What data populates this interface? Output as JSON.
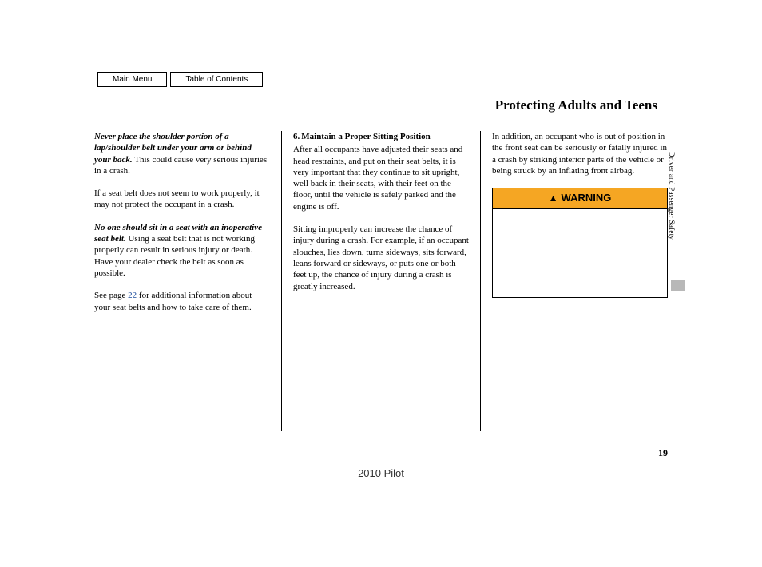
{
  "nav": {
    "main_menu": "Main Menu",
    "toc": "Table of Contents"
  },
  "title": "Protecting Adults and Teens",
  "side_label": "Driver and Passenger Safety",
  "page_number": "19",
  "footer_model": "2010 Pilot",
  "col1": {
    "p1_bold": "Never place the shoulder portion of a lap/shoulder belt under your arm or behind your back.",
    "p1_rest": " This could cause very serious injuries in a crash.",
    "p2": "If a seat belt does not seem to work properly, it may not protect the occupant in a crash.",
    "p3_bold": "No one should sit in a seat with an inoperative seat belt.",
    "p3_rest": " Using a seat belt that is not working properly can result in serious injury or death. Have your dealer check the belt as soon as possible.",
    "p4_a": "See page ",
    "p4_link": "22",
    "p4_b": " for additional information about your seat belts and how to take care of them."
  },
  "col2": {
    "step_num": "6.",
    "step_title": "Maintain a Proper Sitting Position",
    "p1": "After all occupants have adjusted their seats and head restraints, and put on their seat belts, it is very important that they continue to sit upright, well back in their seats, with their feet on the floor, until the vehicle is safely parked and the engine is off.",
    "p2": "Sitting improperly can increase the chance of injury during a crash. For example, if an occupant slouches, lies down, turns sideways, sits forward, leans forward or sideways, or puts one or both feet up, the chance of injury during a crash is greatly increased."
  },
  "col3": {
    "p1": "In addition, an occupant who is out of position in the front seat can be seriously or fatally injured in a crash by striking interior parts of the vehicle or being struck by an inflating front airbag.",
    "warning_label": "WARNING"
  },
  "colors": {
    "warning_bg": "#f5a623",
    "link_color": "#1a4b9b",
    "side_gray": "#b8b8b8"
  }
}
